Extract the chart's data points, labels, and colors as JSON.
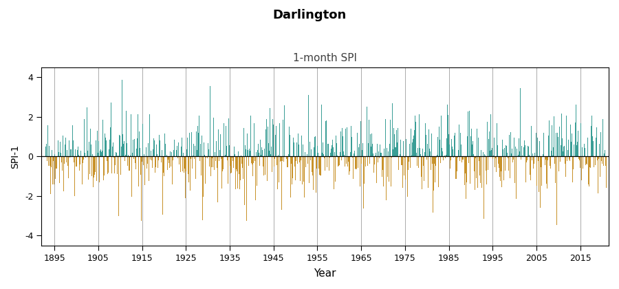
{
  "title": "Darlington",
  "subtitle": "1-month SPI",
  "xlabel": "Year",
  "ylabel": "SPI-1",
  "title_color": "#000000",
  "subtitle_color": "#404040",
  "positive_color": "#3A9E96",
  "negative_color": "#C8922A",
  "ylim": [
    -4.5,
    4.5
  ],
  "yticks": [
    -4,
    -2,
    0,
    2,
    4
  ],
  "xlim": [
    1892.0,
    2021.5
  ],
  "xticks": [
    1895,
    1905,
    1915,
    1925,
    1935,
    1945,
    1955,
    1965,
    1975,
    1985,
    1995,
    2005,
    2015
  ],
  "start_year": 1893,
  "start_month": 1,
  "end_year": 2020,
  "end_month": 12,
  "seed": 42,
  "figsize": [
    9.0,
    4.2
  ],
  "dpi": 100
}
